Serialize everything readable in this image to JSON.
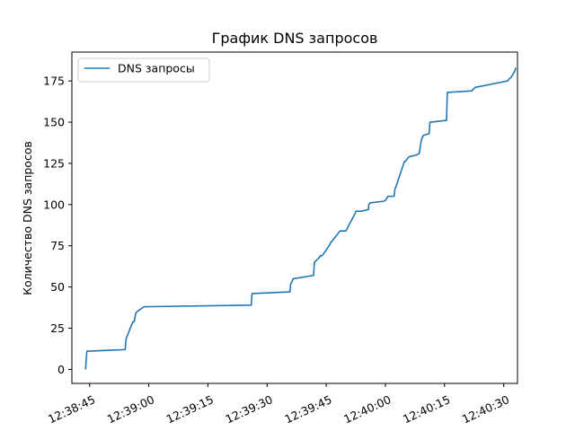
{
  "chart_data": {
    "type": "line",
    "title": "График DNS запросов",
    "xlabel": "",
    "ylabel": "Количество DNS запросов",
    "x_tick_labels": [
      "12:38:45",
      "12:39:00",
      "12:39:15",
      "12:39:30",
      "12:39:45",
      "12:40:00",
      "12:40:15",
      "12:40:30"
    ],
    "x_tick_seconds": [
      45,
      60,
      75,
      90,
      105,
      120,
      135,
      150
    ],
    "xlim_seconds": [
      40.5,
      153.5
    ],
    "y_ticks": [
      0,
      25,
      50,
      75,
      100,
      125,
      150,
      175
    ],
    "ylim": [
      -8.5,
      192.5
    ],
    "legend_position": "upper-left",
    "line_color": "#1f77b4",
    "series": [
      {
        "name": "DNS запросы",
        "x_seconds": [
          44.0,
          44.1,
          44.2,
          44.3,
          54.0,
          54.2,
          54.3,
          54.5,
          55.8,
          55.9,
          56.0,
          56.3,
          56.7,
          57.0,
          58.8,
          86.0,
          86.1,
          86.2,
          95.8,
          96.0,
          96.3,
          96.6,
          101.8,
          102.0,
          103.3,
          103.5,
          104.0,
          106.0,
          106.1,
          106.2,
          108.5,
          109.0,
          110.0,
          110.2,
          112.4,
          112.5,
          112.6,
          113.2,
          114.0,
          115.7,
          115.8,
          116.1,
          119.6,
          120.2,
          120.6,
          122.2,
          122.4,
          122.5,
          122.7,
          124.8,
          125.0,
          125.3,
          126.0,
          127.8,
          128.6,
          129.1,
          129.6,
          131.1,
          131.3,
          131.5,
          135.2,
          135.5,
          135.7,
          142.0,
          142.2,
          142.4,
          142.7,
          151.0,
          151.3,
          151.8,
          152.1,
          152.8,
          153.1
        ],
        "values": [
          0,
          5,
          8,
          11,
          12,
          17,
          19,
          20,
          28,
          28,
          29,
          29,
          34,
          35,
          38,
          39,
          44,
          46,
          47,
          52,
          53,
          55,
          57,
          65,
          68,
          69,
          69,
          76,
          77,
          77,
          84,
          84,
          84,
          85,
          95,
          96,
          96,
          96,
          96,
          97,
          100,
          101,
          102,
          103,
          105,
          105,
          109,
          110,
          111,
          126,
          126,
          127,
          129,
          130,
          131,
          139,
          142,
          143,
          150,
          150,
          151,
          151,
          168,
          169,
          170,
          170,
          171,
          175,
          176,
          177,
          178,
          181,
          183
        ]
      }
    ]
  }
}
